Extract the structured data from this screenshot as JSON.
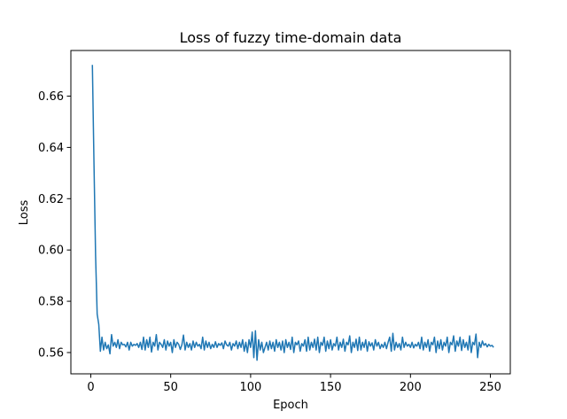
{
  "chart_data": {
    "type": "line",
    "title": "Loss of fuzzy time-domain data",
    "xlabel": "Epoch",
    "ylabel": "Loss",
    "xlim": [
      -12.45,
      262.45
    ],
    "ylim": [
      0.5517,
      0.6778
    ],
    "xticks": [
      0,
      50,
      100,
      150,
      200,
      250
    ],
    "xtick_labels": [
      "0",
      "50",
      "100",
      "150",
      "200",
      "250"
    ],
    "yticks": [
      0.56,
      0.58,
      0.6,
      0.62,
      0.64,
      0.66
    ],
    "ytick_labels": [
      "0.56",
      "0.58",
      "0.60",
      "0.62",
      "0.64",
      "0.66"
    ],
    "grid": false,
    "line_color": "#1f77b4",
    "series": [
      {
        "x_start": 1,
        "x_step": 1,
        "values": [
          0.6722,
          0.634,
          0.598,
          0.575,
          0.571,
          0.5605,
          0.566,
          0.561,
          0.564,
          0.5615,
          0.563,
          0.5595,
          0.567,
          0.5625,
          0.564,
          0.562,
          0.565,
          0.5615,
          0.564,
          0.563,
          0.5632,
          0.5622,
          0.564,
          0.561,
          0.564,
          0.5625,
          0.5632,
          0.5628,
          0.5635,
          0.562,
          0.564,
          0.5612,
          0.566,
          0.561,
          0.565,
          0.562,
          0.566,
          0.5602,
          0.564,
          0.5625,
          0.567,
          0.561,
          0.564,
          0.5632,
          0.562,
          0.565,
          0.561,
          0.5645,
          0.5625,
          0.564,
          0.56,
          0.565,
          0.562,
          0.564,
          0.5632,
          0.5612,
          0.563,
          0.5668,
          0.561,
          0.564,
          0.562,
          0.5635,
          0.561,
          0.5645,
          0.562,
          0.564,
          0.5625,
          0.5632,
          0.5615,
          0.566,
          0.561,
          0.5645,
          0.562,
          0.564,
          0.5615,
          0.5632,
          0.562,
          0.5642,
          0.562,
          0.5635,
          0.5628,
          0.5638,
          0.5615,
          0.5645,
          0.563,
          0.5625,
          0.564,
          0.561,
          0.5635,
          0.5625,
          0.5645,
          0.5615,
          0.564,
          0.562,
          0.565,
          0.5605,
          0.564,
          0.56,
          0.565,
          0.562,
          0.568,
          0.558,
          0.5685,
          0.557,
          0.565,
          0.561,
          0.564,
          0.56,
          0.562,
          0.564,
          0.561,
          0.5645,
          0.5615,
          0.564,
          0.5605,
          0.565,
          0.562,
          0.564,
          0.561,
          0.5645,
          0.56,
          0.565,
          0.562,
          0.564,
          0.5612,
          0.566,
          0.56,
          0.564,
          0.563,
          0.5645,
          0.5605,
          0.5635,
          0.5625,
          0.565,
          0.5605,
          0.566,
          0.561,
          0.564,
          0.562,
          0.5652,
          0.561,
          0.566,
          0.56,
          0.564,
          0.5628,
          0.566,
          0.5605,
          0.5645,
          0.5615,
          0.565,
          0.561,
          0.5635,
          0.5625,
          0.566,
          0.561,
          0.564,
          0.562,
          0.5652,
          0.5605,
          0.564,
          0.563,
          0.5665,
          0.56,
          0.564,
          0.562,
          0.5652,
          0.5608,
          0.566,
          0.561,
          0.564,
          0.562,
          0.565,
          0.5605,
          0.5642,
          0.5625,
          0.5638,
          0.561,
          0.565,
          0.5625,
          0.564,
          0.5615,
          0.5632,
          0.562,
          0.564,
          0.5615,
          0.564,
          0.566,
          0.5605,
          0.5675,
          0.561,
          0.564,
          0.562,
          0.5635,
          0.561,
          0.566,
          0.562,
          0.564,
          0.5625,
          0.5632,
          0.562,
          0.564,
          0.5618,
          0.5632,
          0.5625,
          0.564,
          0.5615,
          0.566,
          0.561,
          0.564,
          0.562,
          0.565,
          0.5605,
          0.564,
          0.563,
          0.566,
          0.56,
          0.5645,
          0.5615,
          0.565,
          0.561,
          0.564,
          0.5625,
          0.566,
          0.56,
          0.564,
          0.563,
          0.5665,
          0.5605,
          0.5645,
          0.5625,
          0.566,
          0.5608,
          0.565,
          0.562,
          0.564,
          0.561,
          0.5665,
          0.56,
          0.564,
          0.563,
          0.5672,
          0.558,
          0.564,
          0.562,
          0.5645,
          0.5628,
          0.5635,
          0.5622,
          0.5632,
          0.5625,
          0.5628,
          0.562
        ]
      }
    ]
  }
}
